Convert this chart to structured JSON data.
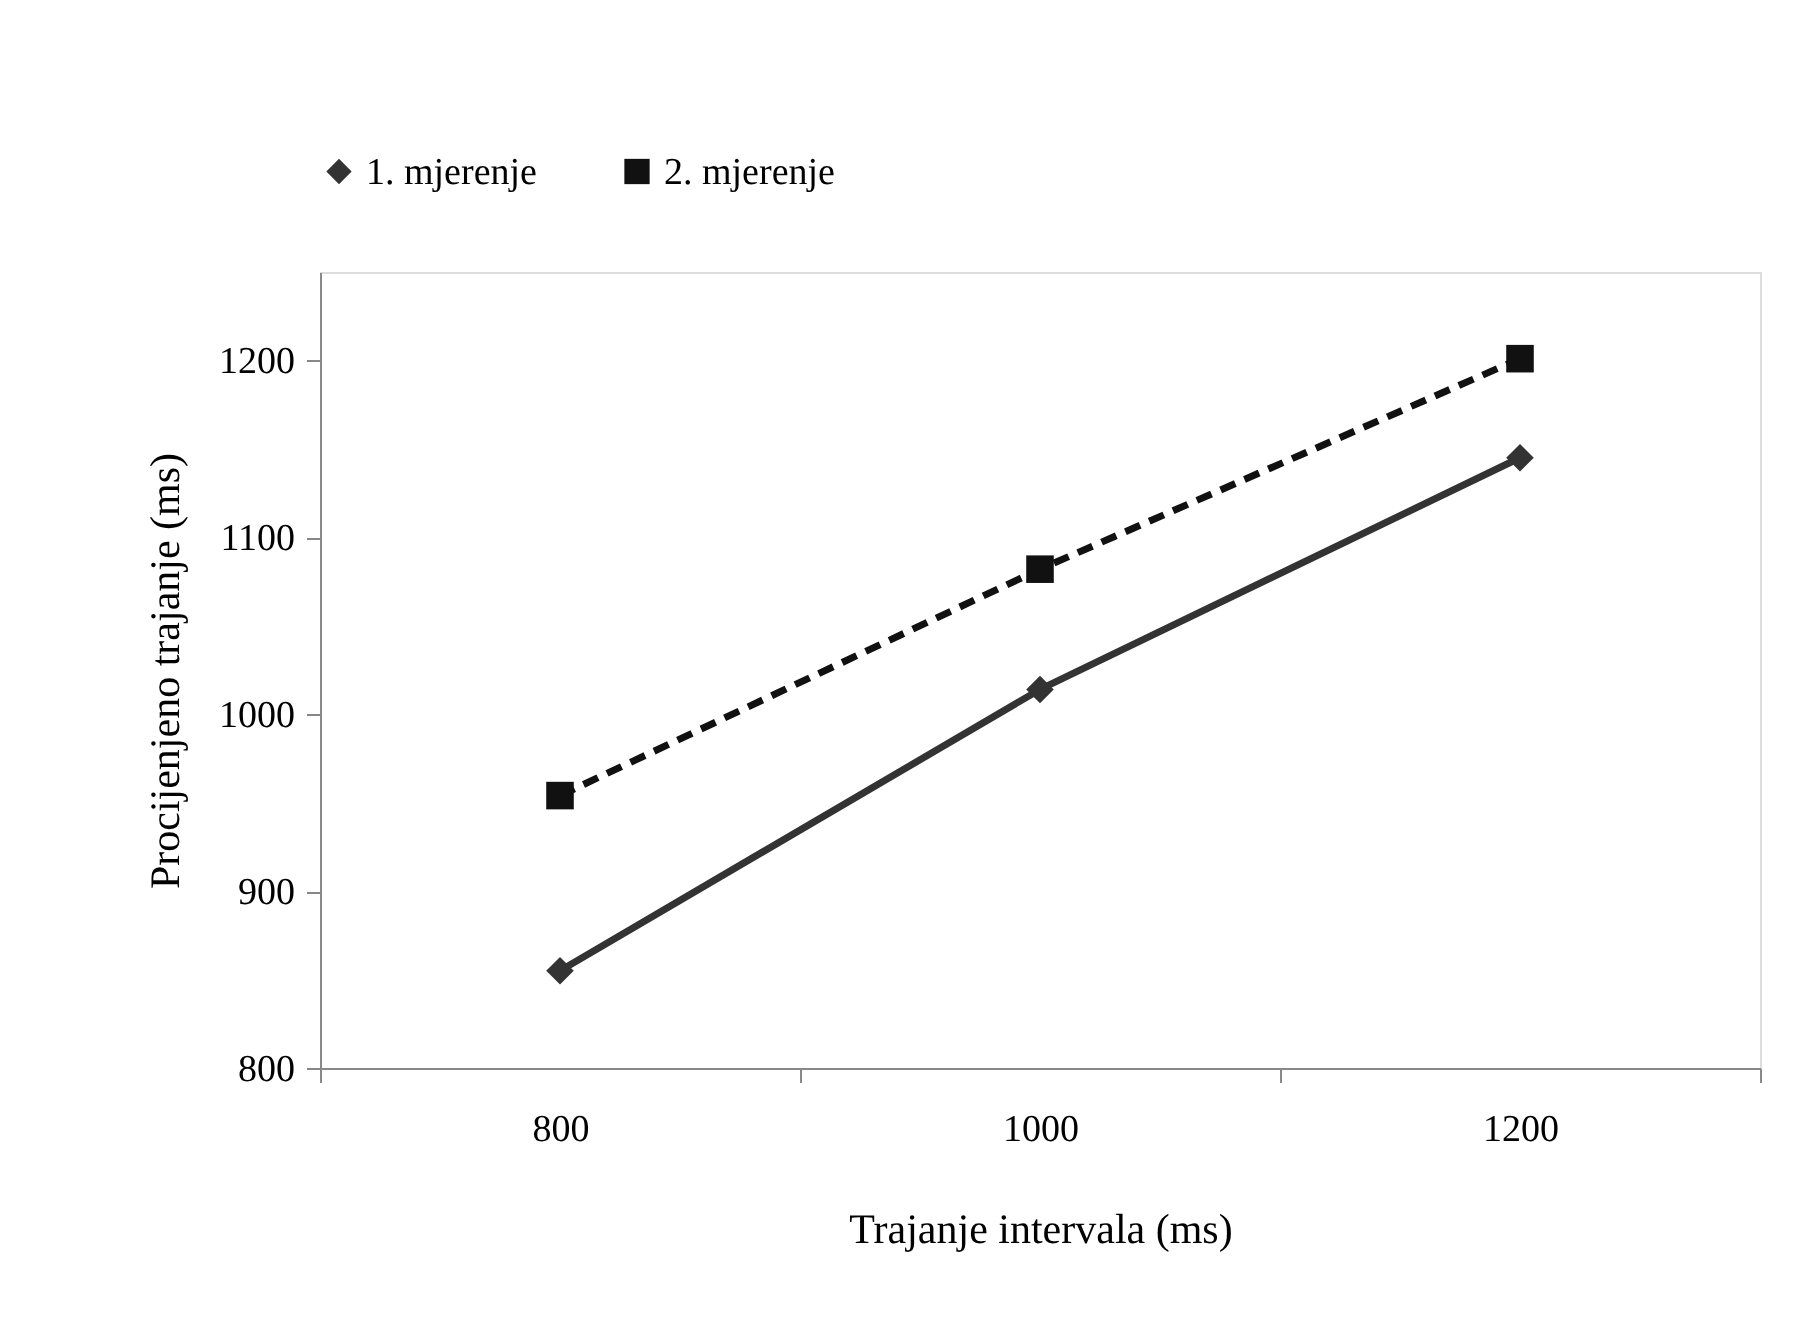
{
  "chart_data": {
    "type": "line",
    "xlabel": "Trajanje intervala (ms)",
    "ylabel": "Procijenjeno trajanje  (ms)",
    "categories": [
      "800",
      "1000",
      "1200"
    ],
    "series": [
      {
        "name": "1. mjerenje",
        "color": "#333333",
        "marker": "diamond",
        "line_style": "solid",
        "values": [
          855,
          1014,
          1145
        ]
      },
      {
        "name": "2. mjerenje",
        "color": "#111111",
        "marker": "square",
        "line_style": "dashed",
        "values": [
          954,
          1082,
          1201
        ]
      }
    ],
    "ylim": [
      800,
      1250
    ],
    "yticks": [
      800,
      900,
      1000,
      1100,
      1200
    ],
    "grid": false,
    "legend": "top"
  }
}
